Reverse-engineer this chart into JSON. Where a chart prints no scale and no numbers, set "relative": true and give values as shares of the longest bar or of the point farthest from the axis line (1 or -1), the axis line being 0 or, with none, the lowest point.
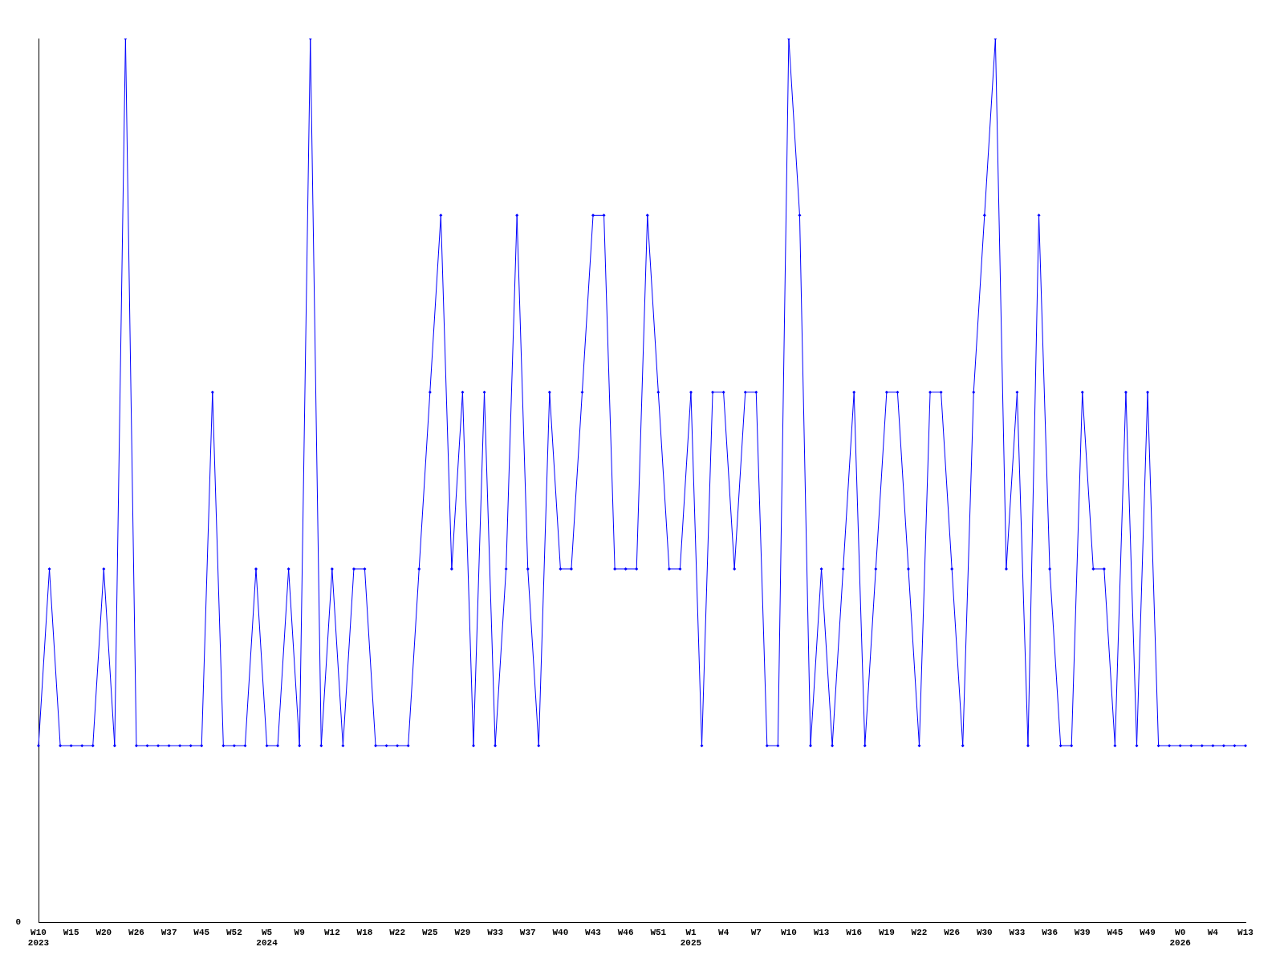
{
  "chart_data": {
    "type": "line",
    "relative": true,
    "marker": "diamond",
    "line_style": "solid",
    "grid": false,
    "legend": false,
    "categories": [
      "W10\n2023",
      null,
      null,
      "W15",
      null,
      null,
      "W20",
      null,
      null,
      "W26",
      null,
      null,
      "W37",
      null,
      null,
      "W45",
      null,
      null,
      "W52",
      null,
      null,
      "W5\n2024",
      null,
      null,
      "W9",
      null,
      null,
      "W12",
      null,
      null,
      "W18",
      null,
      null,
      "W22",
      null,
      null,
      "W25",
      null,
      null,
      "W29",
      null,
      null,
      "W33",
      null,
      null,
      "W37",
      null,
      null,
      "W40",
      null,
      null,
      "W43",
      null,
      null,
      "W46",
      null,
      null,
      "W51",
      null,
      null,
      "W1\n2025",
      null,
      null,
      "W4",
      null,
      null,
      "W7",
      null,
      null,
      "W10",
      null,
      null,
      "W13",
      null,
      null,
      "W16",
      null,
      null,
      "W19",
      null,
      null,
      "W22",
      null,
      null,
      "W26",
      null,
      null,
      "W30",
      null,
      null,
      "W33",
      null,
      null,
      "W36",
      null,
      null,
      "W39",
      null,
      null,
      "W45",
      null,
      null,
      "W49",
      null,
      null,
      "W0\n2026",
      null,
      null,
      "W4",
      null,
      null,
      "W13"
    ],
    "series": [
      {
        "color": "#0000ff",
        "values": [
          0.2,
          0.4,
          0.2,
          0.2,
          0.2,
          0.2,
          0.4,
          0.2,
          1,
          0.2,
          0.2,
          0.2,
          0.2,
          0.2,
          0.2,
          0.2,
          0.6,
          0.2,
          0.2,
          0.2,
          0.4,
          0.2,
          0.2,
          0.4,
          0.2,
          1,
          0.2,
          0.4,
          0.2,
          0.4,
          0.4,
          0.2,
          0.2,
          0.2,
          0.2,
          0.4,
          0.6,
          0.8,
          0.4,
          0.6,
          0.2,
          0.6,
          0.2,
          0.4,
          0.8,
          0.4,
          0.2,
          0.6,
          0.4,
          0.4,
          0.6,
          0.8,
          0.8,
          0.4,
          0.4,
          0.4,
          0.8,
          0.6,
          0.4,
          0.4,
          0.6,
          0.2,
          0.6,
          0.6,
          0.4,
          0.6,
          0.6,
          0.2,
          0.2,
          1,
          0.8,
          0.2,
          0.4,
          0.2,
          0.4,
          0.6,
          0.2,
          0.4,
          0.6,
          0.6,
          0.4,
          0.2,
          0.6,
          0.6,
          0.4,
          0.2,
          0.6,
          0.8,
          1,
          0.4,
          0.6,
          0.2,
          0.8,
          0.4,
          0.2,
          0.2,
          0.6,
          0.4,
          0.4,
          0.2,
          0.6,
          0.2,
          0.6,
          0.2,
          0.2,
          0.2,
          0.2,
          0.2,
          0.2,
          0.2,
          0.2,
          0.2
        ]
      }
    ],
    "annotations": [
      "0"
    ]
  }
}
